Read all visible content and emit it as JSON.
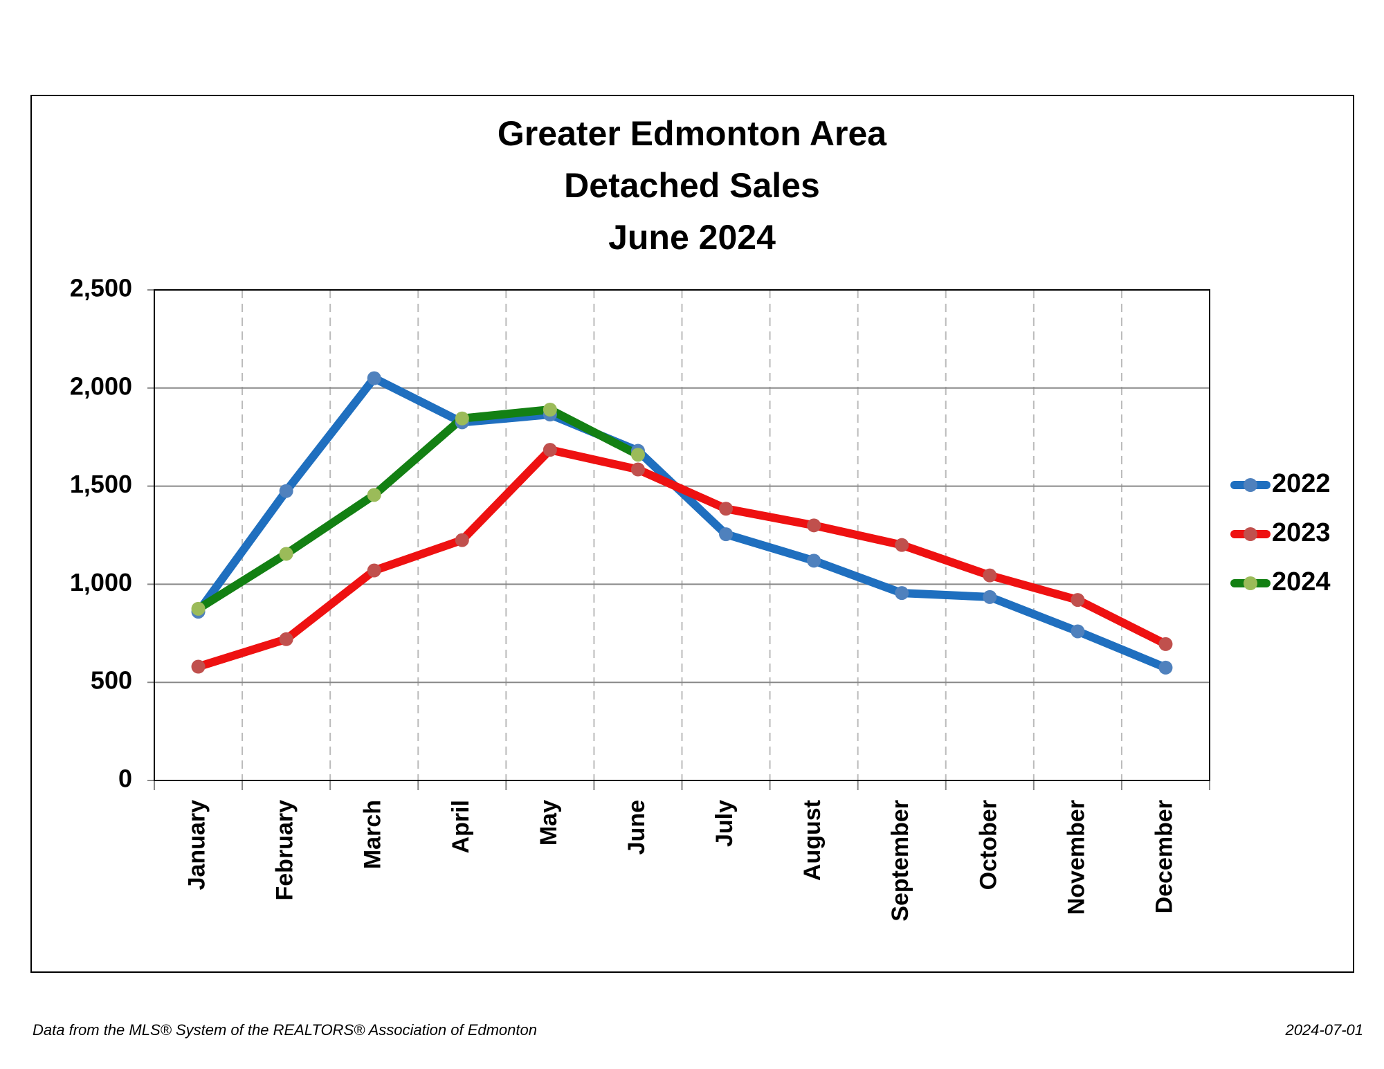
{
  "chart_data": {
    "type": "line",
    "title": [
      "Greater Edmonton Area",
      "Detached Sales",
      "June 2024"
    ],
    "categories": [
      "January",
      "February",
      "March",
      "April",
      "May",
      "June",
      "July",
      "August",
      "September",
      "October",
      "November",
      "December"
    ],
    "series": [
      {
        "name": "2022",
        "color": "#1f6fbf",
        "marker_color": "#4f81bd",
        "values": [
          860,
          1475,
          2050,
          1825,
          1865,
          1680,
          1255,
          1120,
          955,
          935,
          760,
          575
        ]
      },
      {
        "name": "2023",
        "color": "#ee1111",
        "marker_color": "#c0504d",
        "values": [
          580,
          720,
          1070,
          1225,
          1685,
          1585,
          1385,
          1300,
          1200,
          1045,
          920,
          695
        ]
      },
      {
        "name": "2024",
        "color": "#138013",
        "marker_color": "#9bbb59",
        "values": [
          875,
          1155,
          1455,
          1845,
          1890,
          1660,
          null,
          null,
          null,
          null,
          null,
          null
        ]
      }
    ],
    "ylim": [
      0,
      2500
    ],
    "yticks": [
      0,
      500,
      {
        "value": 1000,
        "label": "1,000"
      },
      {
        "value": 1500,
        "label": "1,500"
      },
      {
        "value": 2000,
        "label": "2,000"
      },
      {
        "value": 2500,
        "label": "2,500"
      }
    ],
    "grid": true,
    "legend": "right",
    "source": "Data from the MLS® System of the REALTORS® Association of Edmonton",
    "date": "2024-07-01"
  }
}
